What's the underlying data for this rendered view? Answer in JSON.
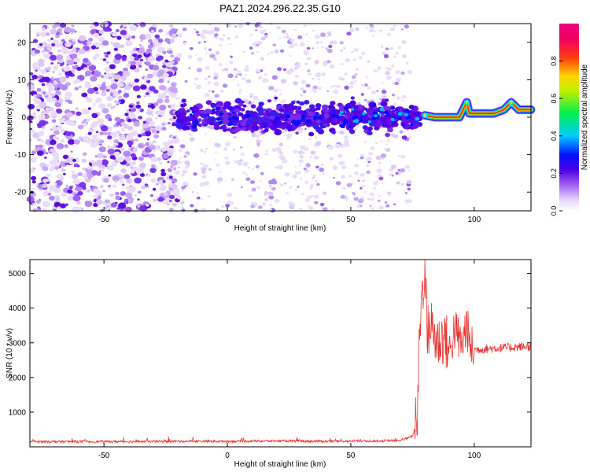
{
  "title": "PAZ1.2024.296.22.35.G10",
  "chart_data": [
    {
      "type": "heatmap",
      "xlabel": "Height of straight line (km)",
      "ylabel": "Frequency (Hz)",
      "xlim": [
        -80,
        123
      ],
      "ylim": [
        -25,
        25
      ],
      "xticks": [
        -50,
        0,
        50,
        100
      ],
      "yticks": [
        -20,
        -10,
        0,
        10,
        20
      ],
      "colorbar": {
        "label": "Normalized spectral amplitude",
        "range": [
          0,
          1
        ],
        "ticks": [
          0.0,
          0.2,
          0.4,
          0.6,
          0.8
        ],
        "colormap": "white-purple-blue-cyan-green-yellow-red-magenta"
      },
      "ridge": [
        {
          "x": -20,
          "y": 0
        },
        {
          "x": 0,
          "y": 0.5
        },
        {
          "x": 40,
          "y": 0
        },
        {
          "x": 75,
          "y": 0
        },
        {
          "x": 80,
          "y": 0.5
        },
        {
          "x": 84,
          "y": 0
        },
        {
          "x": 94,
          "y": 0
        },
        {
          "x": 97,
          "y": 4
        },
        {
          "x": 98,
          "y": 1
        },
        {
          "x": 108,
          "y": 1
        },
        {
          "x": 112,
          "y": 2
        },
        {
          "x": 115,
          "y": 4
        },
        {
          "x": 118,
          "y": 2
        },
        {
          "x": 123,
          "y": 2
        }
      ]
    },
    {
      "type": "line",
      "xlabel": "Height of straight line (km)",
      "ylabel": "SNR (10 * v/v)",
      "xlim": [
        -80,
        123
      ],
      "ylim": [
        0,
        5400
      ],
      "xticks": [
        -50,
        0,
        50,
        100
      ],
      "yticks": [
        1000,
        2000,
        3000,
        4000,
        5000
      ],
      "series": [
        {
          "color": "#e8322e",
          "x": [
            -80,
            -60,
            -40,
            -20,
            0,
            20,
            40,
            60,
            70,
            75,
            77,
            78,
            79,
            80,
            81,
            82,
            85,
            88,
            90,
            92,
            95,
            97,
            98,
            100,
            110,
            123
          ],
          "y": [
            150,
            150,
            150,
            160,
            160,
            170,
            160,
            170,
            180,
            300,
            800,
            3600,
            4500,
            5300,
            3200,
            3600,
            3000,
            3200,
            2700,
            3400,
            2900,
            3600,
            2900,
            2800,
            2850,
            2900
          ]
        }
      ]
    }
  ]
}
